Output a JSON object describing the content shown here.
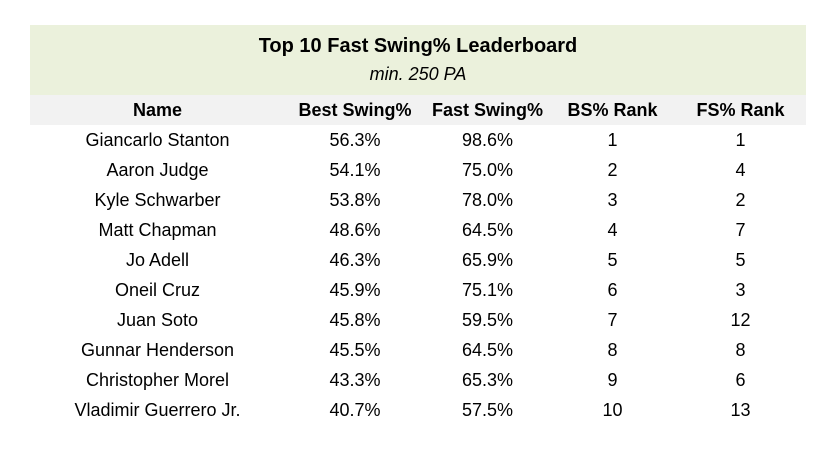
{
  "colors": {
    "title_banner_bg": "#ebf1dc",
    "header_row_bg": "#f2f2f2",
    "row_bg": "#ffffff",
    "text": "#000000"
  },
  "chart_data": {
    "type": "table",
    "title": "Top 10 Fast Swing% Leaderboard",
    "subtitle": "min. 250 PA",
    "columns": [
      "Name",
      "Best Swing%",
      "Fast Swing%",
      "BS% Rank",
      "FS% Rank"
    ],
    "rows": [
      [
        "Giancarlo Stanton",
        "56.3%",
        "98.6%",
        "1",
        "1"
      ],
      [
        "Aaron Judge",
        "54.1%",
        "75.0%",
        "2",
        "4"
      ],
      [
        "Kyle Schwarber",
        "53.8%",
        "78.0%",
        "3",
        "2"
      ],
      [
        "Matt Chapman",
        "48.6%",
        "64.5%",
        "4",
        "7"
      ],
      [
        "Jo Adell",
        "46.3%",
        "65.9%",
        "5",
        "5"
      ],
      [
        "Oneil Cruz",
        "45.9%",
        "75.1%",
        "6",
        "3"
      ],
      [
        "Juan Soto",
        "45.8%",
        "59.5%",
        "7",
        "12"
      ],
      [
        "Gunnar Henderson",
        "45.5%",
        "64.5%",
        "8",
        "8"
      ],
      [
        "Christopher Morel",
        "43.3%",
        "65.3%",
        "9",
        "6"
      ],
      [
        "Vladimir Guerrero Jr.",
        "40.7%",
        "57.5%",
        "10",
        "13"
      ]
    ]
  }
}
